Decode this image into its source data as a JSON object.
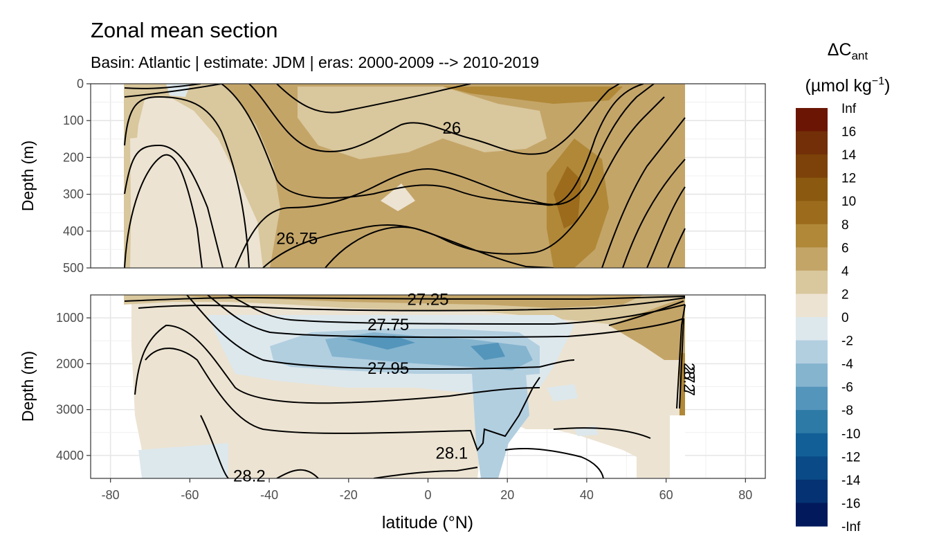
{
  "chart_data": {
    "type": "contour",
    "title": "Zonal mean section",
    "subtitle": "Basin: Atlantic | estimate: JDM  | eras: 2000-2009 --> 2010-2019",
    "xlabel": "latitude (°N)",
    "ylabel": "Depth (m)",
    "xlim": [
      -85,
      85
    ],
    "xticks": [
      -80,
      -60,
      -40,
      -20,
      0,
      20,
      40,
      60,
      80
    ],
    "panels": [
      {
        "name": "upper",
        "ylim": [
          0,
          500
        ],
        "yticks": [
          0,
          100,
          200,
          300,
          400,
          500
        ]
      },
      {
        "name": "lower",
        "ylim": [
          500,
          4500
        ],
        "yticks": [
          1000,
          2000,
          3000,
          4000
        ]
      }
    ],
    "legend": {
      "title_main": "ΔC",
      "title_sub": "ant",
      "title_units": "(µmol kg",
      "title_exp": "−1",
      "title_close": ")",
      "placement": "right",
      "breaks": [
        "Inf",
        "16",
        "14",
        "12",
        "10",
        "8",
        "6",
        "4",
        "2",
        "0",
        "-2",
        "-4",
        "-6",
        "-8",
        "-10",
        "-12",
        "-14",
        "-16",
        "-Inf"
      ],
      "colors": [
        "#6b1605",
        "#722f08",
        "#7c4209",
        "#8b590f",
        "#9c6b1c",
        "#b08838",
        "#c4a568",
        "#d9c79d",
        "#ece3d2",
        "#dde8ed",
        "#b2cfe0",
        "#85b4cf",
        "#5495bb",
        "#2d7aa7",
        "#125f97",
        "#0a4a86",
        "#053272",
        "#021a5c"
      ]
    },
    "isopycnals": [
      {
        "label": "26",
        "label_lat": 6,
        "label_depth": 120
      },
      {
        "label": "26.75",
        "label_lat": -33,
        "label_depth": 420
      },
      {
        "label": "27.25",
        "label_lat": 0,
        "label_depth": 600
      },
      {
        "label": "27.75",
        "label_lat": -10,
        "label_depth": 1150
      },
      {
        "label": "27.95",
        "label_lat": -10,
        "label_depth": 2100
      },
      {
        "label": "28.1",
        "label_lat": 6,
        "label_depth": 3950
      },
      {
        "label": "28.2",
        "label_lat": -45,
        "label_depth": 4450
      }
    ],
    "edge_labels": [
      "28.2",
      "27.7"
    ]
  }
}
